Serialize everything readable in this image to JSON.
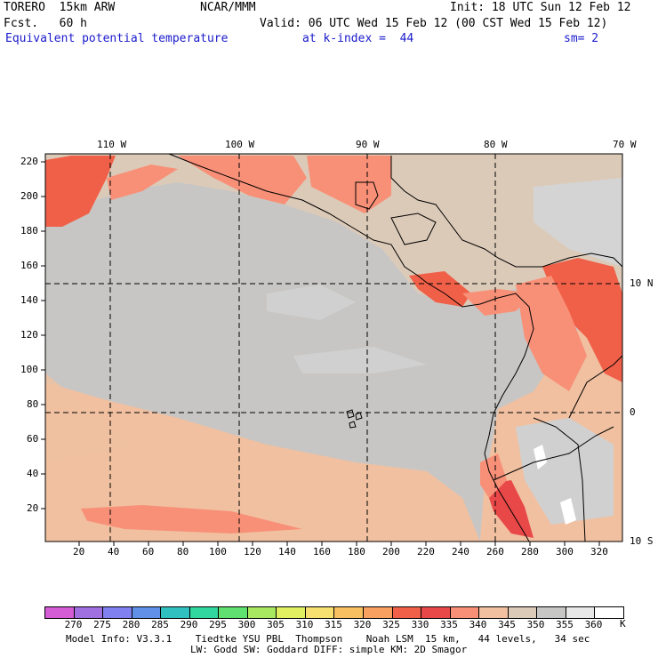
{
  "header": {
    "model": "TORERO  15km ARW",
    "org": "NCAR/MMM",
    "init": "Init: 18 UTC Sun 12 Feb 12",
    "fcst": "Fcst.   60 h",
    "valid": "Valid: 06 UTC Wed 15 Feb 12 (00 CST Wed 15 Feb 12)",
    "field": "Equivalent potential temperature",
    "level": "at k-index =  44",
    "smooth": "sm= 2"
  },
  "map": {
    "top_labels": [
      "110 W",
      "100 W",
      "90 W",
      "80 W",
      "70 W"
    ],
    "right_labels": [
      "10 N",
      "0",
      "10 S"
    ],
    "y_ticks": [
      "220",
      "200",
      "180",
      "160",
      "140",
      "120",
      "100",
      "80",
      "60",
      "40",
      "20"
    ],
    "x_ticks": [
      "20",
      "40",
      "60",
      "80",
      "100",
      "120",
      "140",
      "160",
      "180",
      "200",
      "220",
      "240",
      "260",
      "280",
      "300",
      "320"
    ]
  },
  "colorbar": {
    "unit": "K",
    "labels": [
      "270",
      "275",
      "280",
      "285",
      "290",
      "295",
      "300",
      "305",
      "310",
      "315",
      "320",
      "325",
      "330",
      "335",
      "340",
      "345",
      "350",
      "355",
      "360"
    ],
    "colors": [
      "#d45cd4",
      "#a070e0",
      "#8080f0",
      "#6090e8",
      "#30c0c0",
      "#30d8a0",
      "#60e070",
      "#a8e860",
      "#e0f060",
      "#f8e070",
      "#f8c060",
      "#f8a060",
      "#f06048",
      "#e84848",
      "#f89078",
      "#f0c0a0",
      "#dccab8",
      "#c8c6c4",
      "#e8e8e8",
      "#ffffff"
    ]
  },
  "footer": {
    "line1": "Model Info: V3.3.1    Tiedtke YSU PBL  Thompson    Noah LSM  15 km,   44 levels,   34 sec",
    "line2": "LW: Godd SW: Goddard DIFF: simple KM: 2D Smagor"
  }
}
